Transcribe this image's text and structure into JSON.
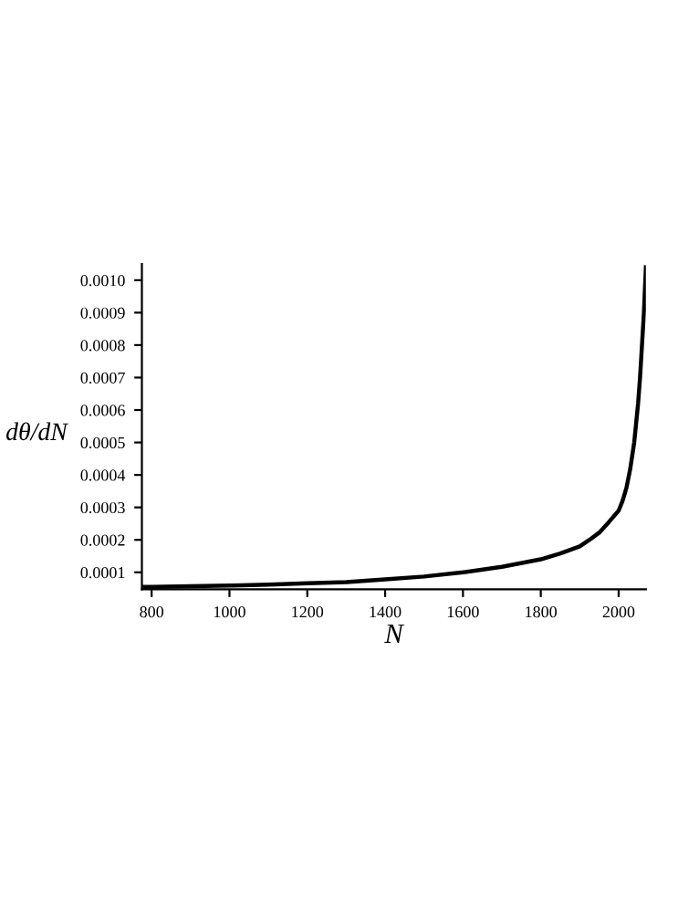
{
  "chart_data": {
    "type": "line",
    "xlabel": "N",
    "ylabel": "dθ/dN",
    "series": [
      {
        "color": "#000000",
        "x": [
          775,
          800,
          900,
          1000,
          1100,
          1200,
          1300,
          1400,
          1500,
          1600,
          1700,
          1800,
          1850,
          1900,
          1925,
          1950,
          1975,
          2000,
          2010,
          2020,
          2030,
          2040,
          2050,
          2055,
          2060,
          2065,
          2070
        ],
        "values": [
          5.5e-05,
          5.5e-05,
          5.7e-05,
          5.9e-05,
          6.2e-05,
          6.6e-05,
          7e-05,
          7.8e-05,
          8.7e-05,
          0.0001,
          0.000117,
          0.00014,
          0.000158,
          0.00018,
          0.0002,
          0.000222,
          0.000255,
          0.00029,
          0.00032,
          0.00036,
          0.00042,
          0.0005,
          0.00062,
          0.0007,
          0.0008,
          0.0009,
          0.00104
        ]
      }
    ],
    "xlim": [
      775,
      2070
    ],
    "ylim": [
      4.73e-05,
      0.00105
    ],
    "xticks": [
      800,
      1000,
      1200,
      1400,
      1600,
      1800,
      2000
    ],
    "yticks": [
      {
        "value": 0.0001,
        "label": "0.0001"
      },
      {
        "value": 0.0002,
        "label": "0.0002"
      },
      {
        "value": 0.0003,
        "label": "0.0003"
      },
      {
        "value": 0.0004,
        "label": "0.0004"
      },
      {
        "value": 0.0005,
        "label": "0.0005"
      },
      {
        "value": 0.0006,
        "label": "0.0006"
      },
      {
        "value": 0.0007,
        "label": "0.0007"
      },
      {
        "value": 0.0008,
        "label": "0.0008"
      },
      {
        "value": 0.0009,
        "label": "0.0009"
      },
      {
        "value": 0.001,
        "label": "0.0010"
      }
    ],
    "grid": false,
    "legend": false,
    "marker": "none",
    "line_style": "solid"
  }
}
